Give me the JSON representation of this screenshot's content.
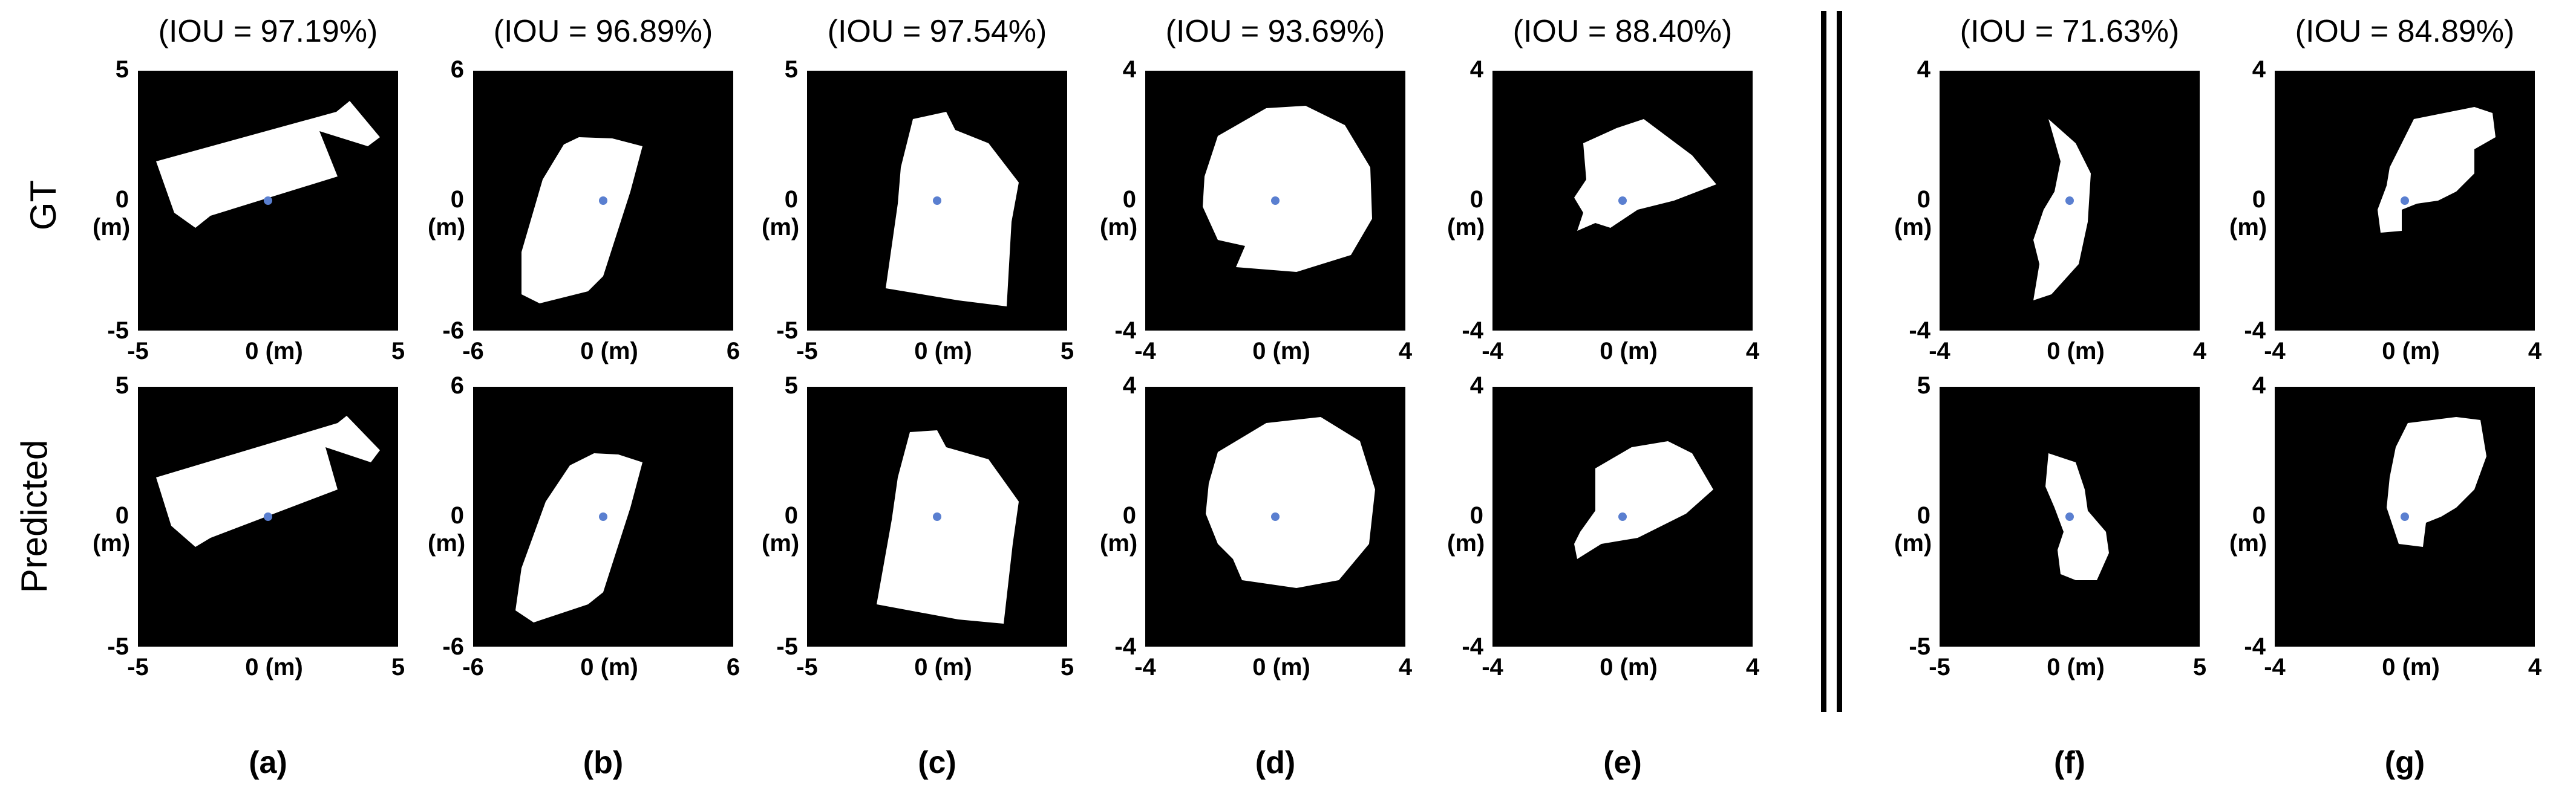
{
  "row_labels": {
    "gt": "GT",
    "predicted": "Predicted"
  },
  "unit_label": "(m)",
  "panels": [
    {
      "id": "a",
      "caption": "(a)",
      "iou": "(IOU = 97.19%)",
      "gt_range": [
        "-5",
        "0",
        "5"
      ],
      "pred_range": [
        "-5",
        "0",
        "5"
      ],
      "x_ticks": [
        "-5",
        "0 (m)",
        "5"
      ]
    },
    {
      "id": "b",
      "caption": "(b)",
      "iou": "(IOU = 96.89%)",
      "gt_range": [
        "-6",
        "0",
        "6"
      ],
      "pred_range": [
        "-6",
        "0",
        "6"
      ],
      "x_ticks": [
        "-6",
        "0 (m)",
        "6"
      ]
    },
    {
      "id": "c",
      "caption": "(c)",
      "iou": "(IOU = 97.54%)",
      "gt_range": [
        "-5",
        "0",
        "5"
      ],
      "pred_range": [
        "-5",
        "0",
        "5"
      ],
      "x_ticks": [
        "-5",
        "0 (m)",
        "5"
      ]
    },
    {
      "id": "d",
      "caption": "(d)",
      "iou": "(IOU = 93.69%)",
      "gt_range": [
        "-4",
        "0",
        "4"
      ],
      "pred_range": [
        "-4",
        "0",
        "4"
      ],
      "x_ticks": [
        "-4",
        "0 (m)",
        "4"
      ]
    },
    {
      "id": "e",
      "caption": "(e)",
      "iou": "(IOU = 88.40%)",
      "gt_range": [
        "-4",
        "0",
        "4"
      ],
      "pred_range": [
        "-4",
        "0",
        "4"
      ],
      "x_ticks": [
        "-4",
        "0 (m)",
        "4"
      ]
    },
    {
      "id": "f",
      "caption": "(f)",
      "iou": "(IOU = 71.63%)",
      "gt_range": [
        "-4",
        "0",
        "4"
      ],
      "pred_range": [
        "-5",
        "0",
        "5"
      ],
      "gt_x_ticks": [
        "-4",
        "0 (m)",
        "4"
      ],
      "x_ticks": [
        "-5",
        "0 (m)",
        "5"
      ]
    },
    {
      "id": "g",
      "caption": "(g)",
      "iou": "(IOU = 84.89%)",
      "gt_range": [
        "-4",
        "0",
        "4"
      ],
      "pred_range": [
        "-4",
        "0",
        "4"
      ],
      "x_ticks": [
        "-4",
        "0 (m)",
        "4"
      ]
    }
  ],
  "colors": {
    "background": "#000000",
    "footprint": "#ffffff",
    "origin_marker": "#5a7fd0"
  }
}
